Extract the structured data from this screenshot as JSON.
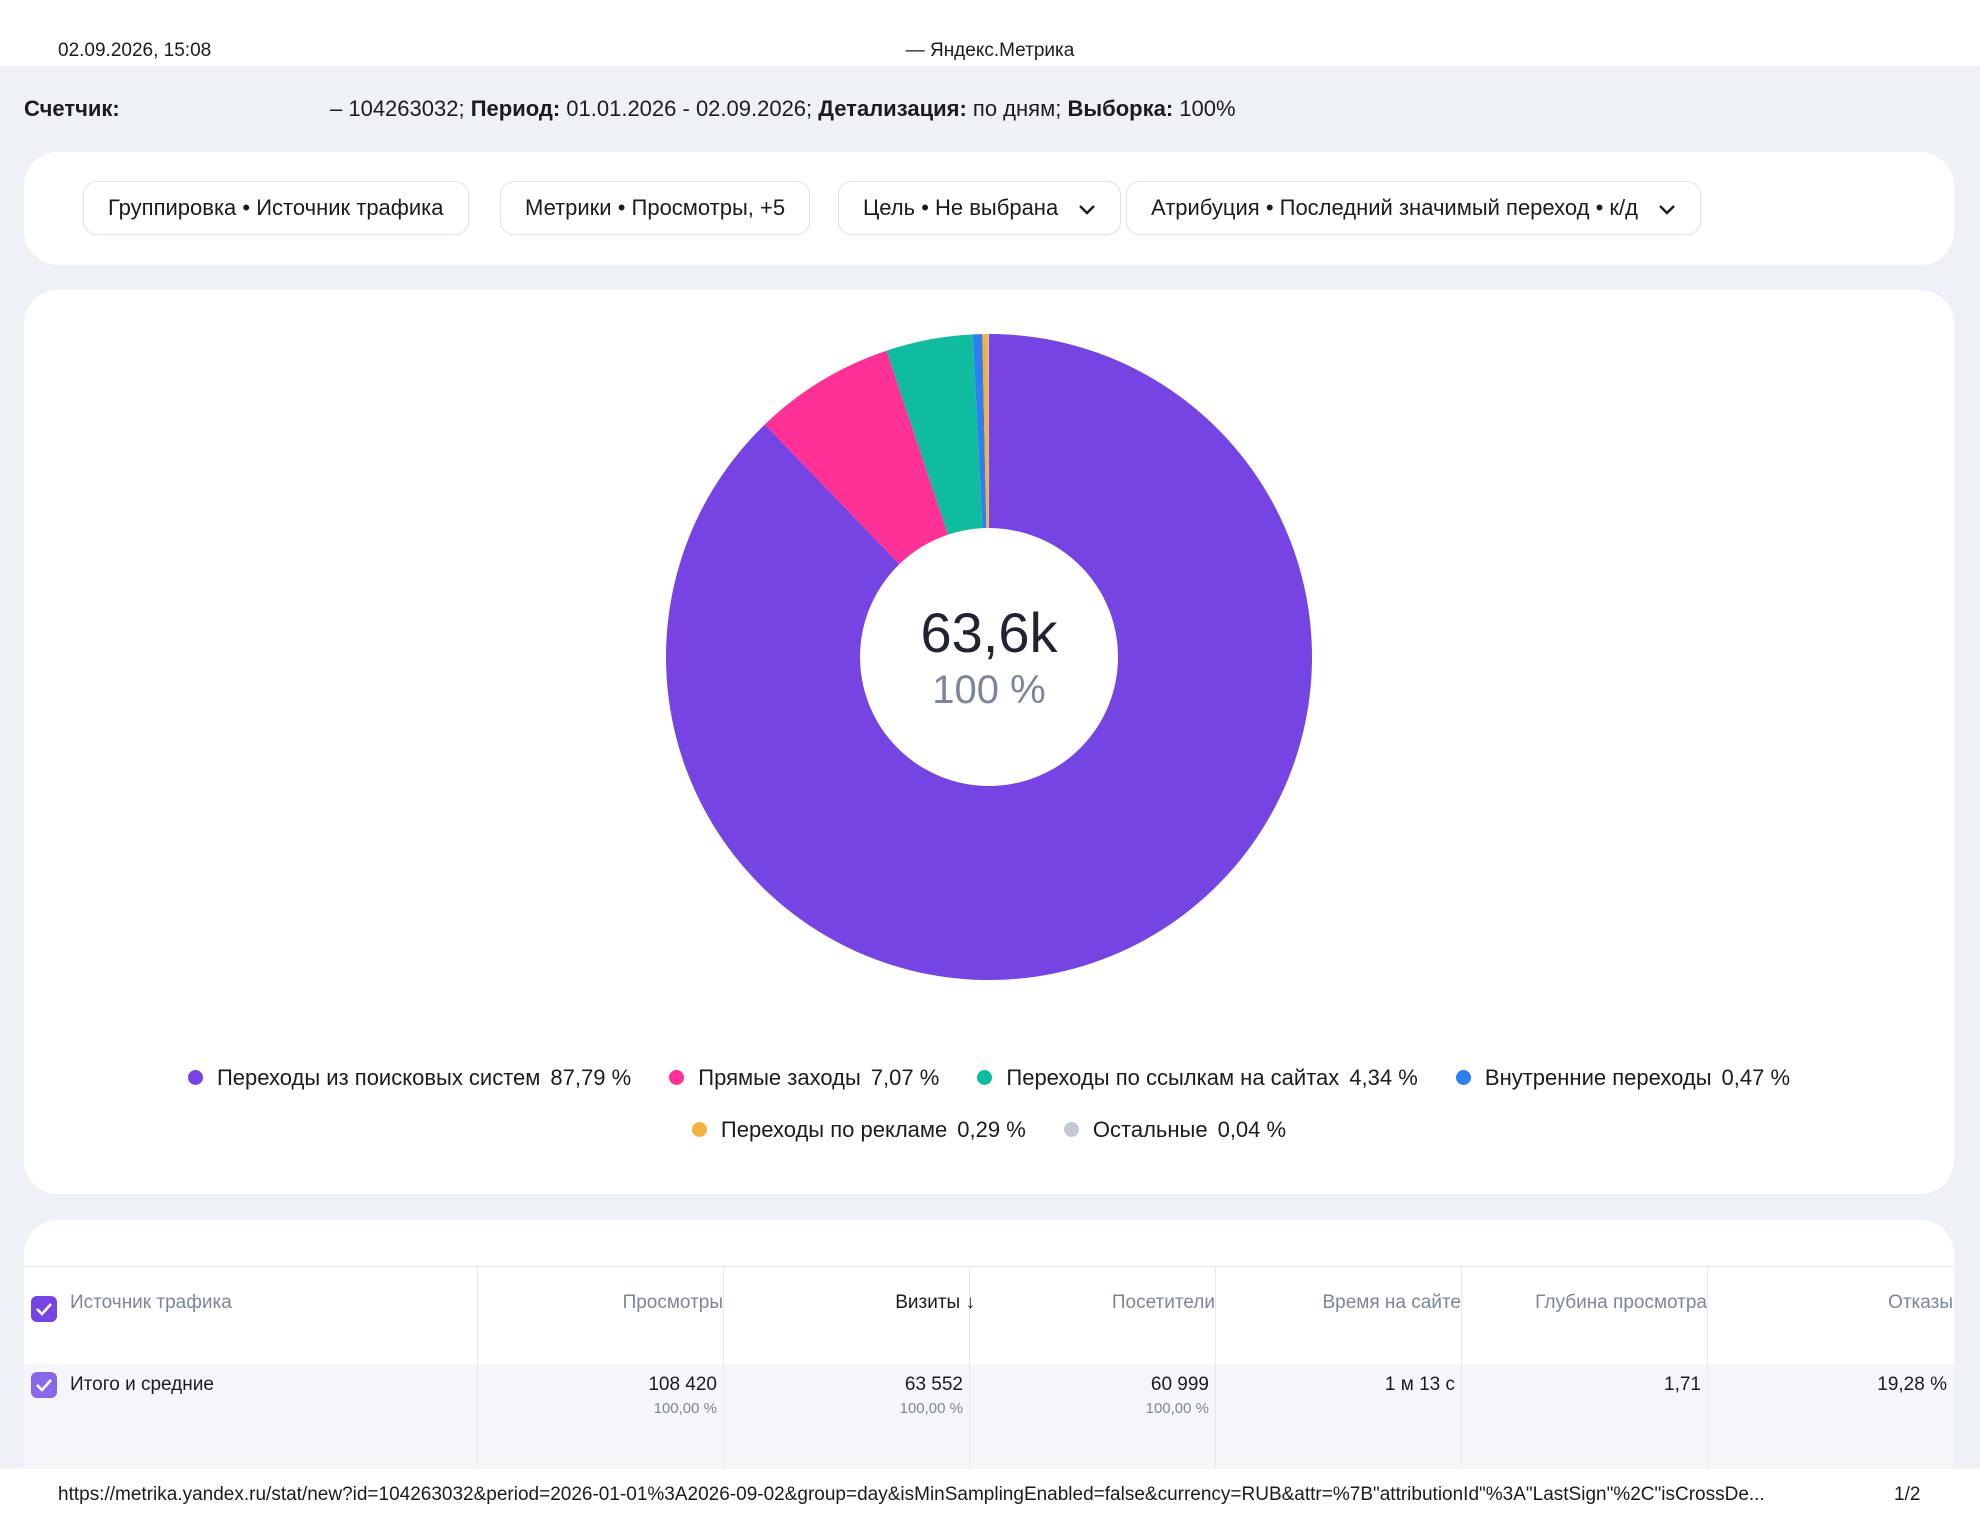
{
  "print_header": {
    "datetime": "02.09.2026, 15:08",
    "title": "— Яндекс.Метрика"
  },
  "report_info": {
    "counter_label": "Счетчик:",
    "counter_value": "– 104263032;",
    "period_label": "Период:",
    "period_value": "01.01.2026 - 02.09.2026;",
    "detail_label": "Детализация:",
    "detail_value": "по дням;",
    "sample_label": "Выборка:",
    "sample_value": "100%"
  },
  "filters": {
    "grouping": "Группировка • Источник трафика",
    "metrics": "Метрики • Просмотры, +5",
    "goal": "Цель • Не выбрана",
    "attribution": "Атрибуция • Последний значимый переход • к/д"
  },
  "chart_data": {
    "type": "pie",
    "center_value": "63,6k",
    "center_percent": "100 %",
    "slices": [
      {
        "label": "Переходы из поисковых систем",
        "percent_text": "87,79 %",
        "value": 87.79,
        "color": "#7744e4"
      },
      {
        "label": "Прямые заходы",
        "percent_text": "7,07 %",
        "value": 7.07,
        "color": "#ff3096"
      },
      {
        "label": "Переходы по ссылкам на сайтах",
        "percent_text": "4,34 %",
        "value": 4.34,
        "color": "#10bc9f"
      },
      {
        "label": "Внутренние переходы",
        "percent_text": "0,47 %",
        "value": 0.47,
        "color": "#2f7ff0"
      },
      {
        "label": "Переходы по рекламе",
        "percent_text": "0,29 %",
        "value": 0.29,
        "color": "#f5b041"
      },
      {
        "label": "Остальные",
        "percent_text": "0,04 %",
        "value": 0.04,
        "color": "#c3c9d4"
      }
    ]
  },
  "table": {
    "columns": [
      "Источник трафика",
      "Просмотры",
      "Визиты",
      "Посетители",
      "Время на сайте",
      "Глубина просмотра",
      "Отказы"
    ],
    "sort_arrow": "↓",
    "total_row": {
      "label": "Итого и средние",
      "views": "108 420",
      "views_pct": "100,00 %",
      "visits": "63 552",
      "visits_pct": "100,00 %",
      "visitors": "60 999",
      "visitors_pct": "100,00 %",
      "time": "1 м 13 с",
      "depth": "1,71",
      "bounce": "19,28 %"
    }
  },
  "print_footer": {
    "url": "https://metrika.yandex.ru/stat/new?id=104263032&period=2026-01-01%3A2026-09-02&group=day&isMinSamplingEnabled=false&currency=RUB&attr=%7B\"attributionId\"%3A\"LastSign\"%2C\"isCrossDe...",
    "page": "1/2"
  }
}
